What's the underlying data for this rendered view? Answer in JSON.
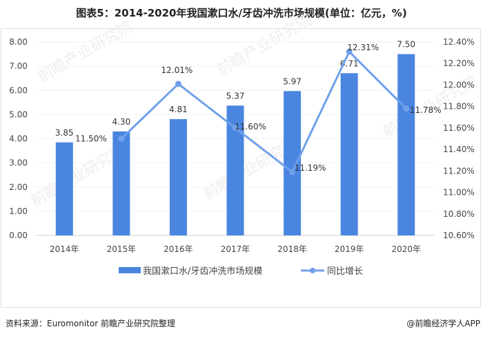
{
  "title": "图表5：2014-2020年我国漱口水/牙齿冲洗市场规模(单位：亿元，%)",
  "source": "资料来源：Euromonitor 前瞻产业研究院整理",
  "credit": "@前瞻经济学人APP",
  "watermark": "前瞻产业研究院",
  "colors": {
    "bar": "#4a86e0",
    "line": "#6fa0ea"
  },
  "chart_data": {
    "type": "bar",
    "categories": [
      "2014年",
      "2015年",
      "2016年",
      "2017年",
      "2018年",
      "2019年",
      "2020年"
    ],
    "series": [
      {
        "name": "我国漱口水/牙齿冲洗市场规模",
        "type": "bar",
        "axis": "left",
        "values": [
          3.85,
          4.3,
          4.81,
          5.37,
          5.97,
          6.71,
          7.5
        ],
        "labels": [
          "3.85",
          "4.30",
          "4.81",
          "5.37",
          "5.97",
          "6.71",
          "7.50"
        ]
      },
      {
        "name": "同比增长",
        "type": "line",
        "axis": "right",
        "values": [
          null,
          11.5,
          12.01,
          11.6,
          11.19,
          12.31,
          11.78
        ],
        "labels": [
          "",
          "11.50%",
          "12.01%",
          "11.60%",
          "11.19%",
          "12.31%",
          "11.78%"
        ]
      }
    ],
    "ylim_left": [
      0,
      8
    ],
    "ylim_right": [
      10.6,
      12.4
    ],
    "left_ticks": [
      "0.00",
      "1.00",
      "2.00",
      "3.00",
      "4.00",
      "5.00",
      "6.00",
      "7.00",
      "8.00"
    ],
    "right_ticks": [
      "10.60%",
      "10.80%",
      "11.00%",
      "11.20%",
      "11.40%",
      "11.60%",
      "11.80%",
      "12.00%",
      "12.20%",
      "12.40%"
    ],
    "legend": "bottom"
  }
}
